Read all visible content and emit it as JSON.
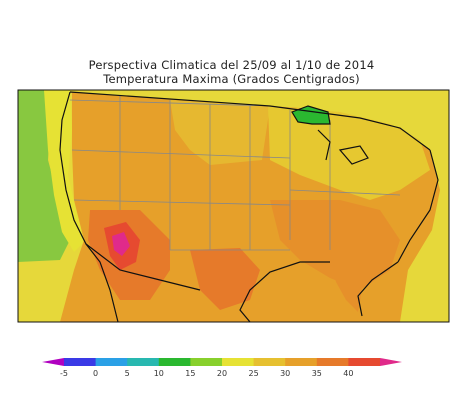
{
  "map": {
    "title_line1": "Perspectiva Climatica del 25/09 al 1/10 de 2014",
    "title_line2": "Temperatura Maxima (Grados Centigrados)"
  },
  "legend": {
    "colors": [
      "#b000c0",
      "#3a3ae6",
      "#2aa0e6",
      "#28b8b0",
      "#2ab830",
      "#88d02c",
      "#e6e234",
      "#e6c030",
      "#e6a02a",
      "#e67a2a",
      "#e64a30",
      "#e02a8a"
    ],
    "ticks": [
      "-5",
      "0",
      "5",
      "10",
      "15",
      "20",
      "25",
      "30",
      "35",
      "40"
    ]
  }
}
